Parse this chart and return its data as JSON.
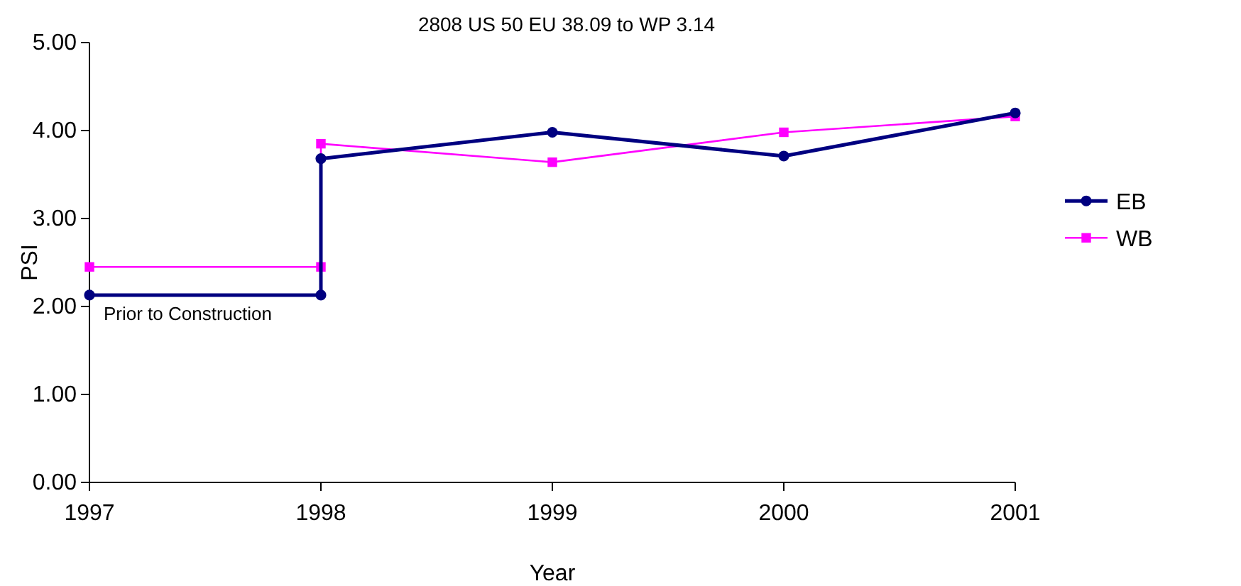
{
  "chart_data": {
    "type": "line",
    "title": "2808 US 50 EU 38.09 to WP 3.14",
    "xlabel": "Year",
    "ylabel": "PSI",
    "xlim": [
      1997,
      2001
    ],
    "xticks": [
      1997,
      1998,
      1999,
      2000,
      2001
    ],
    "ylim": [
      0,
      5
    ],
    "yticks": [
      {
        "value": 0,
        "label": "0.00"
      },
      {
        "value": 1,
        "label": "1.00"
      },
      {
        "value": 2,
        "label": "2.00"
      },
      {
        "value": 3,
        "label": "3.00"
      },
      {
        "value": 4,
        "label": "4.00"
      },
      {
        "value": 5,
        "label": "5.00"
      }
    ],
    "grid": false,
    "legend": "right",
    "line_style": "solid",
    "annotations": [
      "Prior to Construction"
    ],
    "series": [
      {
        "name": "EB",
        "color": "#000080",
        "marker": "circle",
        "x": [
          1997,
          1998,
          1998,
          1999,
          2000,
          2001
        ],
        "values": [
          2.13,
          2.13,
          3.68,
          3.98,
          3.71,
          4.2
        ]
      },
      {
        "name": "WB",
        "color": "#ff00ff",
        "marker": "square",
        "x": [
          1997,
          1998,
          1998,
          1999,
          2000,
          2001
        ],
        "values": [
          2.45,
          2.45,
          3.85,
          3.64,
          3.98,
          4.16
        ]
      }
    ]
  }
}
